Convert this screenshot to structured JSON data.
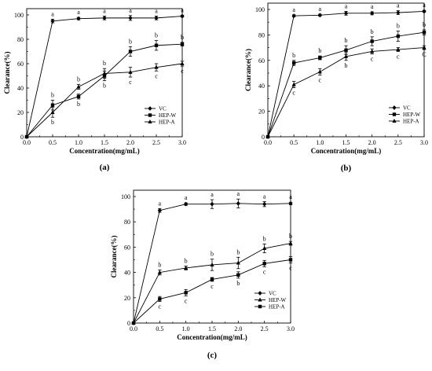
{
  "figure": {
    "panels": [
      {
        "panel_label": "(a)",
        "xlabel": "Concentration(mg/mL)",
        "ylabel": "Clearance(%)",
        "legend": [
          "VC",
          "HEP-W",
          "HEP-A"
        ]
      },
      {
        "panel_label": "(b)",
        "xlabel": "Concentration(mg/mL)",
        "ylabel": "Clearance(%)",
        "legend": [
          "VC",
          "HEP-W",
          "HEP-A"
        ]
      },
      {
        "panel_label": "(c)",
        "xlabel": "Concentration(mg/mL)",
        "ylabel": "Clearance(%)",
        "legend": [
          "VC",
          "HEP-W",
          "HEP-A"
        ]
      }
    ]
  },
  "chart_data": [
    {
      "type": "line",
      "panel": "(a)",
      "xlabel": "Concentration(mg/mL)",
      "ylabel": "Clearance(%)",
      "xlim": [
        0,
        3.0
      ],
      "ylim": [
        0,
        100
      ],
      "xticks": [
        "0.0",
        "0.5",
        "1.0",
        "1.5",
        "2.0",
        "2.5",
        "3.0"
      ],
      "yticks": [
        "0",
        "20",
        "40",
        "60",
        "80",
        "100"
      ],
      "legend_position": "bottom-right",
      "x": [
        0,
        0.5,
        1.0,
        1.5,
        2.0,
        2.5,
        3.0
      ],
      "series": [
        {
          "name": "VC",
          "marker": "diamond",
          "values": [
            0,
            95,
            97,
            97.5,
            97.5,
            97.5,
            99
          ],
          "errors": [
            0,
            1.5,
            1.0,
            1.5,
            2.0,
            1.5,
            0.8
          ],
          "labels": [
            "",
            "a",
            "a",
            "a",
            "a",
            "a",
            "a"
          ]
        },
        {
          "name": "HEP-W",
          "marker": "square",
          "values": [
            0,
            26,
            33,
            50,
            70,
            75,
            76
          ],
          "errors": [
            0,
            4,
            2,
            4,
            4,
            4,
            1.5
          ],
          "labels": [
            "",
            "b",
            "b",
            "b",
            "b",
            "b",
            "b"
          ]
        },
        {
          "name": "HEP-A",
          "marker": "triangle",
          "values": [
            0,
            20,
            41,
            52,
            53,
            57,
            60
          ],
          "errors": [
            0,
            4,
            2,
            4,
            4,
            3,
            2
          ],
          "labels": [
            "",
            "b",
            "b",
            "b",
            "c",
            "c",
            "c"
          ]
        }
      ]
    },
    {
      "type": "line",
      "panel": "(b)",
      "xlabel": "Concentration(mg/mL)",
      "ylabel": "Clearance(%)",
      "xlim": [
        0,
        3.0
      ],
      "ylim": [
        0,
        100
      ],
      "xticks": [
        "0.0",
        "0.5",
        "1.0",
        "1.5",
        "2.0",
        "2.5",
        "3.0"
      ],
      "yticks": [
        "0",
        "20",
        "40",
        "60",
        "80",
        "100"
      ],
      "legend_position": "bottom-right",
      "x": [
        0,
        0.5,
        1.0,
        1.5,
        2.0,
        2.5,
        3.0
      ],
      "series": [
        {
          "name": "VC",
          "marker": "diamond",
          "values": [
            0,
            95,
            95.5,
            97,
            97,
            97.5,
            98.5
          ],
          "errors": [
            0,
            0.8,
            0.8,
            1.5,
            1.2,
            1.5,
            0.8
          ],
          "labels": [
            "",
            "a",
            "a",
            "a",
            "a",
            "a",
            "a"
          ]
        },
        {
          "name": "HEP-W",
          "marker": "square",
          "values": [
            0,
            58,
            62,
            68,
            75,
            79,
            82
          ],
          "errors": [
            0,
            2,
            1.5,
            3.5,
            3.5,
            4,
            2
          ],
          "labels": [
            "",
            "b",
            "b",
            "b",
            "b",
            "b",
            "b"
          ]
        },
        {
          "name": "HEP-A",
          "marker": "triangle",
          "values": [
            0,
            41,
            51,
            63,
            67,
            68.5,
            70
          ],
          "errors": [
            0,
            2.5,
            2.5,
            3,
            2,
            1.5,
            1.5
          ],
          "labels": [
            "",
            "c",
            "c",
            "b",
            "c",
            "c",
            "C"
          ]
        }
      ]
    },
    {
      "type": "line",
      "panel": "(c)",
      "xlabel": "Concentration(mg/mL)",
      "ylabel": "Clearance(%)",
      "xlim": [
        0,
        3.0
      ],
      "ylim": [
        0,
        100
      ],
      "xticks": [
        "0.0",
        "0.5",
        "1.0",
        "1.5",
        "2.0",
        "2.5",
        "3.0"
      ],
      "yticks": [
        "0",
        "20",
        "40",
        "60",
        "80",
        "100"
      ],
      "legend_position": "bottom-right",
      "x": [
        0,
        0.5,
        1.0,
        1.5,
        2.0,
        2.5,
        3.0
      ],
      "series": [
        {
          "name": "VC",
          "marker": "diamond",
          "values": [
            0,
            89,
            94,
            94,
            94.5,
            94,
            94.5
          ],
          "errors": [
            0,
            1.5,
            1.0,
            3.5,
            3.5,
            2,
            1
          ],
          "labels": [
            "",
            "a",
            "a",
            "a",
            "a",
            "a",
            "a"
          ]
        },
        {
          "name": "HEP-W",
          "marker": "triangle",
          "values": [
            0,
            40,
            43.5,
            46,
            47.5,
            59,
            63
          ],
          "errors": [
            0,
            2,
            1.5,
            4.5,
            4.5,
            3.5,
            1.5
          ],
          "labels": [
            "",
            "b",
            "b",
            "b",
            "b",
            "b",
            "b"
          ]
        },
        {
          "name": "HEP-A",
          "marker": "square",
          "values": [
            0,
            19,
            24,
            34.5,
            38,
            47,
            50
          ],
          "errors": [
            0,
            2,
            2.5,
            1.5,
            2.5,
            2.5,
            2.5
          ],
          "labels": [
            "",
            "c",
            "c",
            "c",
            "b",
            "c",
            "c"
          ]
        }
      ]
    }
  ]
}
